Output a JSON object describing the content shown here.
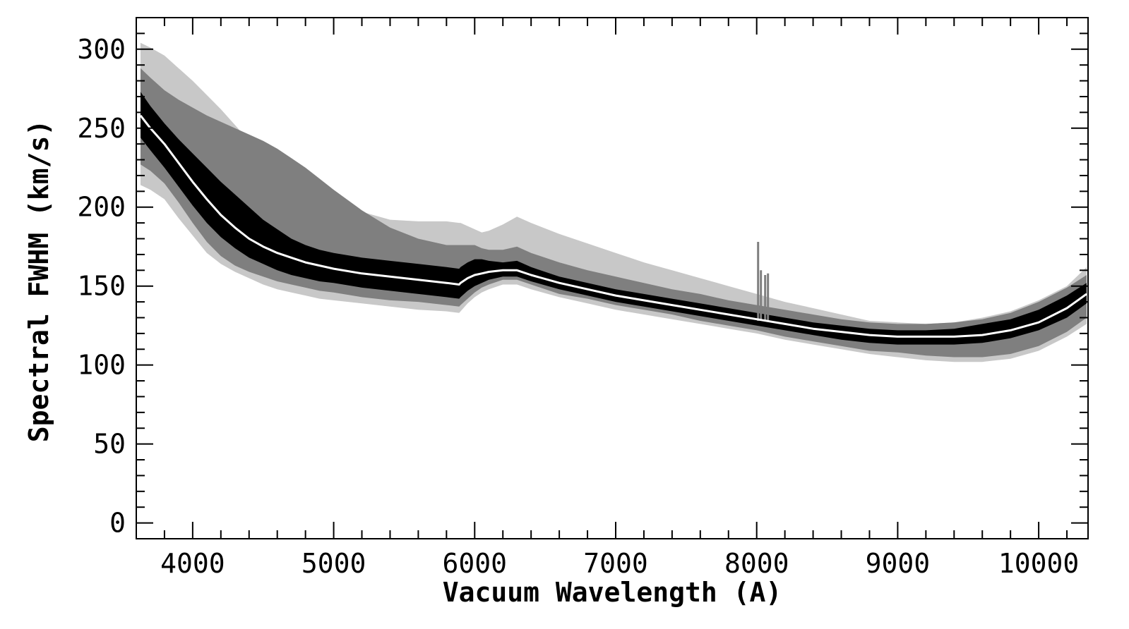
{
  "chart_data": {
    "type": "area",
    "xlabel": "Vacuum Wavelength (A)",
    "ylabel": "Spectral FWHM (km/s)",
    "xlim": [
      3600,
      10350
    ],
    "ylim": [
      -10,
      320
    ],
    "xticks": [
      4000,
      5000,
      6000,
      7000,
      8000,
      9000,
      10000
    ],
    "yticks": [
      0,
      50,
      100,
      150,
      200,
      250,
      300
    ],
    "x_minor_step": 200,
    "y_minor_step": 10,
    "grid": false,
    "legend": "none",
    "colors": {
      "outer_band": "#c8c8c8",
      "middle_band": "#7f7f7f",
      "inner_band": "#000000",
      "median_line": "#ffffff",
      "axes": "#000000"
    },
    "x": [
      3630,
      3700,
      3800,
      3900,
      4000,
      4100,
      4200,
      4300,
      4400,
      4500,
      4600,
      4700,
      4800,
      4900,
      5000,
      5200,
      5400,
      5600,
      5800,
      5890,
      5900,
      5950,
      6000,
      6050,
      6100,
      6200,
      6300,
      6400,
      6600,
      6800,
      7000,
      7200,
      7400,
      7600,
      7800,
      8000,
      8200,
      8400,
      8600,
      8800,
      9000,
      9200,
      9400,
      9600,
      9800,
      10000,
      10200,
      10340
    ],
    "series": [
      {
        "role": "median",
        "values": [
          258,
          250,
          240,
          228,
          216,
          205,
          195,
          187,
          180,
          175,
          171,
          168,
          165,
          163,
          161,
          158,
          156,
          154,
          152,
          151,
          152,
          155,
          157,
          158,
          159,
          160,
          160,
          157,
          152,
          148,
          144,
          141,
          138,
          135,
          132,
          129,
          126,
          123,
          121,
          119,
          118,
          118,
          118,
          119,
          122,
          127,
          136,
          145
        ]
      },
      {
        "role": "inner-upper",
        "values": [
          273,
          264,
          253,
          243,
          234,
          225,
          216,
          208,
          200,
          192,
          186,
          180,
          176,
          173,
          171,
          168,
          166,
          164,
          162,
          161,
          162,
          165,
          167,
          167,
          166,
          165,
          166,
          162,
          156,
          152,
          148,
          145,
          142,
          139,
          136,
          133,
          130,
          127,
          125,
          123,
          122,
          122,
          123,
          126,
          129,
          135,
          144,
          152
        ]
      },
      {
        "role": "inner-lower",
        "values": [
          244,
          236,
          225,
          213,
          201,
          190,
          181,
          174,
          168,
          164,
          160,
          157,
          155,
          153,
          152,
          149,
          147,
          145,
          143,
          142,
          143,
          147,
          150,
          152,
          154,
          156,
          156,
          153,
          148,
          144,
          140,
          137,
          134,
          131,
          128,
          125,
          122,
          119,
          116,
          114,
          113,
          113,
          113,
          114,
          117,
          122,
          130,
          139
        ]
      },
      {
        "role": "middle-upper",
        "values": [
          288,
          282,
          274,
          268,
          263,
          258,
          254,
          250,
          246,
          242,
          237,
          231,
          225,
          218,
          211,
          198,
          187,
          180,
          176,
          176,
          176,
          176,
          176,
          174,
          173,
          173,
          175,
          171,
          165,
          160,
          156,
          152,
          148,
          145,
          141,
          138,
          135,
          132,
          129,
          127,
          126,
          126,
          127,
          129,
          133,
          140,
          149,
          157
        ]
      },
      {
        "role": "middle-lower",
        "values": [
          227,
          223,
          215,
          203,
          190,
          178,
          169,
          163,
          159,
          156,
          153,
          151,
          149,
          147,
          146,
          143,
          141,
          140,
          138,
          137,
          138,
          142,
          146,
          149,
          151,
          154,
          154,
          151,
          145,
          142,
          138,
          135,
          132,
          128,
          125,
          122,
          118,
          115,
          112,
          109,
          108,
          106,
          105,
          105,
          107,
          112,
          121,
          130
        ]
      },
      {
        "role": "outer-upper",
        "values": [
          304,
          301,
          296,
          288,
          280,
          271,
          262,
          252,
          242,
          233,
          226,
          218,
          212,
          208,
          204,
          197,
          192,
          191,
          191,
          190,
          190,
          188,
          186,
          184,
          185,
          189,
          194,
          190,
          183,
          177,
          171,
          165,
          160,
          155,
          150,
          145,
          140,
          136,
          132,
          128,
          127,
          126,
          127,
          130,
          134,
          141,
          150,
          162
        ]
      },
      {
        "role": "outer-lower",
        "values": [
          214,
          211,
          205,
          193,
          182,
          171,
          164,
          159,
          155,
          151,
          148,
          146,
          144,
          142,
          141,
          139,
          137,
          135,
          134,
          133,
          134,
          139,
          143,
          146,
          148,
          151,
          151,
          148,
          143,
          139,
          135,
          132,
          129,
          126,
          123,
          120,
          116,
          113,
          110,
          107,
          105,
          103,
          102,
          102,
          104,
          109,
          118,
          126
        ]
      }
    ],
    "spikes": [
      {
        "x": 8010,
        "y": 178
      },
      {
        "x": 8030,
        "y": 160
      },
      {
        "x": 8060,
        "y": 157
      },
      {
        "x": 8080,
        "y": 158
      }
    ]
  }
}
